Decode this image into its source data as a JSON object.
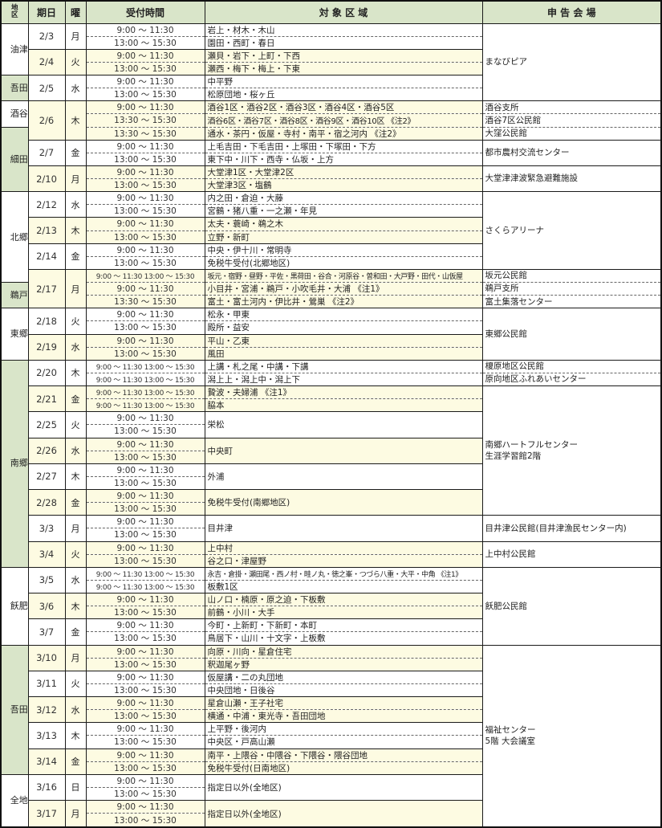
{
  "table": {
    "headers": {
      "district": "地区",
      "date": "期日",
      "day": "曜",
      "time": "受付時間",
      "area": "対 象 区 域",
      "venue": "申 告 会 場"
    },
    "colors": {
      "header_bg": "#d9e5c9",
      "district_green": "#d9e5c9",
      "row_cream": "#fdfbe2",
      "row_white": "#ffffff",
      "border": "#1a1a1a"
    },
    "rows": [
      {
        "sep": "date",
        "bg": "w",
        "district": {
          "label": "油津",
          "span": 4,
          "green": false
        },
        "date": {
          "label": "2/3",
          "day": "月",
          "span": 2
        },
        "time": "9:00 ～ 11:30",
        "area": {
          "text": "岩上・材木・木山"
        },
        "venue": {
          "lines": [
            "まなびピア"
          ],
          "span": 6
        }
      },
      {
        "sep": "sub",
        "bg": "w",
        "time": "13:00 ～ 15:30",
        "area": {
          "text": "園田・西町・春日"
        }
      },
      {
        "sep": "date",
        "bg": "c",
        "date": {
          "label": "2/4",
          "day": "火",
          "span": 2
        },
        "time": "9:00 ～ 11:30",
        "area": {
          "text": "瀬貝・岩下・上町・下西"
        }
      },
      {
        "sep": "sub",
        "bg": "c",
        "time": "13:00 ～ 15:30",
        "area": {
          "text": "瀬西・梅下・梅上・下東"
        }
      },
      {
        "sep": "date",
        "bg": "w",
        "district": {
          "label": "吾田",
          "span": 2,
          "green": true
        },
        "date": {
          "label": "2/5",
          "day": "水",
          "span": 2
        },
        "time": "9:00 ～ 11:30",
        "area": {
          "text": "中平野"
        }
      },
      {
        "sep": "sub",
        "bg": "w",
        "time": "13:00 ～ 15:30",
        "area": {
          "text": "松原団地・桜ヶ丘"
        }
      },
      {
        "sep": "date",
        "bg": "c",
        "district": {
          "label": "酒谷",
          "span": 2,
          "green": false
        },
        "date": {
          "label": "2/6",
          "day": "木",
          "span": 3
        },
        "time": "9:00 ～ 11:30",
        "area": {
          "text": "酒谷1区・酒谷2区・酒谷3区・酒谷4区・酒谷5区"
        },
        "venue": {
          "lines": [
            "酒谷支所"
          ],
          "span": 1
        }
      },
      {
        "sep": "sub",
        "bg": "c",
        "time": "13:30 ～ 15:30",
        "area": {
          "text": "酒谷6区・酒谷7区・酒谷8区・酒谷9区・酒谷10区 《注2》"
        },
        "venue": {
          "lines": [
            "酒谷7区公民館"
          ],
          "span": 1
        }
      },
      {
        "sep": "sub",
        "bg": "c",
        "district": {
          "label": "細田",
          "span": 5,
          "green": true
        },
        "time": "13:30 ～ 15:30",
        "area": {
          "text": "通水・茶円・仮屋・寺村・南平・宿之河内 《注2》"
        },
        "venue": {
          "lines": [
            "大窪公民館"
          ],
          "span": 1
        }
      },
      {
        "sep": "date",
        "bg": "w",
        "date": {
          "label": "2/7",
          "day": "金",
          "span": 2
        },
        "time": "9:00 ～ 11:30",
        "area": {
          "text": "上毛吉田・下毛吉田・上塚田・下塚田・下方"
        },
        "venue": {
          "lines": [
            "都市農村交流センター"
          ],
          "span": 2
        }
      },
      {
        "sep": "sub",
        "bg": "w",
        "time": "13:00 ～ 15:30",
        "area": {
          "text": "東下中・川下・西寺・仏坂・上方"
        }
      },
      {
        "sep": "date",
        "bg": "c",
        "date": {
          "label": "2/10",
          "day": "月",
          "span": 2
        },
        "time": "9:00 ～ 11:30",
        "area": {
          "text": "大堂津1区・大堂津2区"
        },
        "venue": {
          "lines": [
            "大堂津津波緊急避難施設"
          ],
          "span": 2
        }
      },
      {
        "sep": "sub",
        "bg": "c",
        "time": "13:00 ～ 15:30",
        "area": {
          "text": "大堂津3区・塩鶴"
        }
      },
      {
        "sep": "date",
        "bg": "w",
        "district": {
          "label": "北郷",
          "span": 7,
          "green": false
        },
        "date": {
          "label": "2/12",
          "day": "水",
          "span": 2
        },
        "time": "9:00 ～ 11:30",
        "area": {
          "text": "内之田・倉迫・大藤"
        },
        "venue": {
          "lines": [
            "さくらアリーナ"
          ],
          "span": 6
        }
      },
      {
        "sep": "sub",
        "bg": "w",
        "time": "13:00 ～ 15:30",
        "area": {
          "text": "宮鶴・猪八重・一之瀬・年見"
        }
      },
      {
        "sep": "date",
        "bg": "c",
        "date": {
          "label": "2/13",
          "day": "木",
          "span": 2
        },
        "time": "9:00 ～ 11:30",
        "area": {
          "text": "太夫・蓑崎・鵜之木"
        }
      },
      {
        "sep": "sub",
        "bg": "c",
        "time": "13:00 ～ 15:30",
        "area": {
          "text": "立野・新町"
        }
      },
      {
        "sep": "date",
        "bg": "w",
        "date": {
          "label": "2/14",
          "day": "金",
          "span": 2
        },
        "time": "9:00 ～ 11:30",
        "area": {
          "text": "中央・伊十川・常明寺"
        }
      },
      {
        "sep": "sub",
        "bg": "w",
        "time": "13:00 ～ 15:30",
        "area": {
          "text": "免税牛受付(北郷地区)"
        }
      },
      {
        "sep": "date",
        "bg": "c",
        "date": {
          "label": "2/17",
          "day": "月",
          "span": 3
        },
        "time": "9:00 ～ 11:30 13:00 ～ 15:30",
        "area": {
          "text": "坂元・宿野・昼野・平佐・黒荷田・谷合・河原谷・曽和田・大戸野・田代・山仮屋"
        },
        "venue": {
          "lines": [
            "坂元公民館"
          ],
          "span": 1
        }
      },
      {
        "sep": "sub",
        "bg": "c",
        "district": {
          "label": "鵜戸",
          "span": 2,
          "green": true
        },
        "time": "9:00 ～ 11:30",
        "area": {
          "text": "小目井・宮浦・鵜戸・小吹毛井・大浦 《注1》"
        },
        "venue": {
          "lines": [
            "鵜戸支所"
          ],
          "span": 1
        }
      },
      {
        "sep": "sub",
        "bg": "c",
        "time": "13:30 ～ 15:30",
        "area": {
          "text": "富土・富土河内・伊比井・鶯巣 《注2》"
        },
        "venue": {
          "lines": [
            "富土集落センター"
          ],
          "span": 1
        }
      },
      {
        "sep": "date",
        "bg": "w",
        "district": {
          "label": "東郷",
          "span": 4,
          "green": false
        },
        "date": {
          "label": "2/18",
          "day": "火",
          "span": 2
        },
        "time": "9:00 ～ 11:30",
        "area": {
          "text": "松永・甲東"
        },
        "venue": {
          "lines": [
            "東郷公民館"
          ],
          "span": 4
        }
      },
      {
        "sep": "sub",
        "bg": "w",
        "time": "13:00 ～ 15:30",
        "area": {
          "text": "殿所・益安"
        }
      },
      {
        "sep": "date",
        "bg": "c",
        "date": {
          "label": "2/19",
          "day": "水",
          "span": 2
        },
        "time": "9:00 ～ 11:30",
        "area": {
          "text": "平山・乙東"
        }
      },
      {
        "sep": "sub",
        "bg": "c",
        "time": "13:00 ～ 15:30",
        "area": {
          "text": "風田"
        }
      },
      {
        "sep": "date",
        "bg": "w",
        "district": {
          "label": "南郷",
          "span": 16,
          "green": true
        },
        "date": {
          "label": "2/20",
          "day": "木",
          "span": 2
        },
        "time": "9:00 ～ 11:30 13:00 ～ 15:30",
        "area": {
          "text": "上講・札之尾・中講・下講"
        },
        "venue": {
          "lines": [
            "榎原地区公民館"
          ],
          "span": 1
        }
      },
      {
        "sep": "sub",
        "bg": "w",
        "time": "9:00 ～ 11:30 13:00 ～ 15:30",
        "area": {
          "text": "潟上上・潟上中・潟上下"
        },
        "venue": {
          "lines": [
            "原向地区ふれあいセンター"
          ],
          "span": 1
        }
      },
      {
        "sep": "date",
        "bg": "c",
        "date": {
          "label": "2/21",
          "day": "金",
          "span": 2
        },
        "time": "9:00 ～ 11:30 13:00 ～ 15:30",
        "area": {
          "text": "贄波・夫婦浦 《注1》"
        },
        "venue": {
          "lines": [
            "南郷ハートフルセンター",
            "生涯学習館2階"
          ],
          "span": 10
        }
      },
      {
        "sep": "sub",
        "bg": "c",
        "time": "9:00 ～ 11:30 13:00 ～ 15:30",
        "area": {
          "text": "脇本"
        }
      },
      {
        "sep": "date",
        "bg": "w",
        "date": {
          "label": "2/25",
          "day": "火",
          "span": 2
        },
        "time": "9:00 ～ 11:30",
        "area": {
          "text": "栄松",
          "span": 2
        }
      },
      {
        "sep": "sub",
        "bg": "w",
        "time": "13:00 ～ 15:30"
      },
      {
        "sep": "date",
        "bg": "c",
        "date": {
          "label": "2/26",
          "day": "水",
          "span": 2
        },
        "time": "9:00 ～ 11:30",
        "area": {
          "text": "中央町",
          "span": 2
        }
      },
      {
        "sep": "sub",
        "bg": "c",
        "time": "13:00 ～ 15:30"
      },
      {
        "sep": "date",
        "bg": "w",
        "date": {
          "label": "2/27",
          "day": "木",
          "span": 2
        },
        "time": "9:00 ～ 11:30",
        "area": {
          "text": "外浦",
          "span": 2
        }
      },
      {
        "sep": "sub",
        "bg": "w",
        "time": "13:00 ～ 15:30"
      },
      {
        "sep": "date",
        "bg": "c",
        "date": {
          "label": "2/28",
          "day": "金",
          "span": 2
        },
        "time": "9:00 ～ 11:30",
        "area": {
          "text": "免税牛受付(南郷地区)",
          "span": 2
        }
      },
      {
        "sep": "sub",
        "bg": "c",
        "time": "13:00 ～ 15:30"
      },
      {
        "sep": "date",
        "bg": "w",
        "date": {
          "label": "3/3",
          "day": "月",
          "span": 2
        },
        "time": "9:00 ～ 11:30",
        "area": {
          "text": "目井津",
          "span": 2
        },
        "venue": {
          "lines": [
            "目井津公民館(目井津漁民センター内)"
          ],
          "span": 2
        }
      },
      {
        "sep": "sub",
        "bg": "w",
        "time": "13:00 ～ 15:30"
      },
      {
        "sep": "date",
        "bg": "c",
        "date": {
          "label": "3/4",
          "day": "火",
          "span": 2
        },
        "time": "9:00 ～ 11:30",
        "area": {
          "text": "上中村"
        },
        "venue": {
          "lines": [
            "上中村公民館"
          ],
          "span": 2
        }
      },
      {
        "sep": "sub",
        "bg": "c",
        "time": "13:00 ～ 15:30",
        "area": {
          "text": "谷之口・津屋野"
        }
      },
      {
        "sep": "date",
        "bg": "w",
        "district": {
          "label": "飫肥",
          "span": 6,
          "green": false
        },
        "date": {
          "label": "3/5",
          "day": "水",
          "span": 2
        },
        "time": "9:00 ～ 11:30 13:00 ～ 15:30",
        "area": {
          "text": "永吉・倉掛・瀬田尾・西ノ村・畦ノ丸・徳之峯・つづら八重・大平・中角 《注1》"
        },
        "venue": {
          "lines": [
            "飫肥公民館"
          ],
          "span": 6
        }
      },
      {
        "sep": "sub",
        "bg": "w",
        "time": "9:00 ～ 11:30 13:00 ～ 15:30",
        "area": {
          "text": "板敷1区"
        }
      },
      {
        "sep": "date",
        "bg": "c",
        "date": {
          "label": "3/6",
          "day": "木",
          "span": 2
        },
        "time": "9:00 ～ 11:30",
        "area": {
          "text": "山ノ口・楠原・原之迫・下板敷"
        }
      },
      {
        "sep": "sub",
        "bg": "c",
        "time": "13:00 ～ 15:30",
        "area": {
          "text": "前鶴・小川・大手"
        }
      },
      {
        "sep": "date",
        "bg": "w",
        "date": {
          "label": "3/7",
          "day": "金",
          "span": 2
        },
        "time": "9:00 ～ 11:30",
        "area": {
          "text": "今町・上新町・下新町・本町"
        }
      },
      {
        "sep": "sub",
        "bg": "w",
        "time": "13:00 ～ 15:30",
        "area": {
          "text": "鳥居下・山川・十文字・上板敷"
        }
      },
      {
        "sep": "date",
        "bg": "c",
        "district": {
          "label": "吾田",
          "span": 10,
          "green": true
        },
        "date": {
          "label": "3/10",
          "day": "月",
          "span": 2
        },
        "time": "9:00 ～ 11:30",
        "area": {
          "text": "向原・川向・星倉住宅"
        },
        "venue": {
          "lines": [
            "福祉センター",
            "5階 大会議室"
          ],
          "span": 14
        }
      },
      {
        "sep": "sub",
        "bg": "c",
        "time": "13:00 ～ 15:30",
        "area": {
          "text": "釈迦尾ヶ野"
        }
      },
      {
        "sep": "date",
        "bg": "w",
        "date": {
          "label": "3/11",
          "day": "火",
          "span": 2
        },
        "time": "9:00 ～ 11:30",
        "area": {
          "text": "仮屋講・二の丸団地"
        }
      },
      {
        "sep": "sub",
        "bg": "w",
        "time": "13:00 ～ 15:30",
        "area": {
          "text": "中央団地・日後谷"
        }
      },
      {
        "sep": "date",
        "bg": "c",
        "date": {
          "label": "3/12",
          "day": "水",
          "span": 2
        },
        "time": "9:00 ～ 11:30",
        "area": {
          "text": "星倉山瀬・王子社宅"
        }
      },
      {
        "sep": "sub",
        "bg": "c",
        "time": "13:00 ～ 15:30",
        "area": {
          "text": "横通・中浦・東光寺・吾田団地"
        }
      },
      {
        "sep": "date",
        "bg": "w",
        "date": {
          "label": "3/13",
          "day": "木",
          "span": 2
        },
        "time": "9:00 ～ 11:30",
        "area": {
          "text": "上平野・後河内"
        }
      },
      {
        "sep": "sub",
        "bg": "w",
        "time": "13:00 ～ 15:30",
        "area": {
          "text": "中央区・戸高山瀬"
        }
      },
      {
        "sep": "date",
        "bg": "c",
        "date": {
          "label": "3/14",
          "day": "金",
          "span": 2
        },
        "time": "9:00 ～ 11:30",
        "area": {
          "text": "南平・上隈谷・中隈谷・下隈谷・隈谷団地"
        }
      },
      {
        "sep": "sub",
        "bg": "c",
        "time": "13:00 ～ 15:30",
        "area": {
          "text": "免税牛受付(日南地区)"
        }
      },
      {
        "sep": "date",
        "bg": "w",
        "district": {
          "label": "全地区",
          "span": 4,
          "green": false
        },
        "date": {
          "label": "3/16",
          "day": "日",
          "span": 2
        },
        "time": "9:00 ～ 11:30",
        "area": {
          "text": "指定日以外(全地区)",
          "span": 2
        }
      },
      {
        "sep": "sub",
        "bg": "w",
        "time": "13:00 ～ 15:30"
      },
      {
        "sep": "date",
        "bg": "c",
        "date": {
          "label": "3/17",
          "day": "月",
          "span": 2
        },
        "time": "9:00 ～ 11:30",
        "area": {
          "text": "指定日以外(全地区)",
          "span": 2
        }
      },
      {
        "sep": "sub",
        "bg": "c",
        "time": "13:00 ～ 15:30"
      }
    ]
  }
}
